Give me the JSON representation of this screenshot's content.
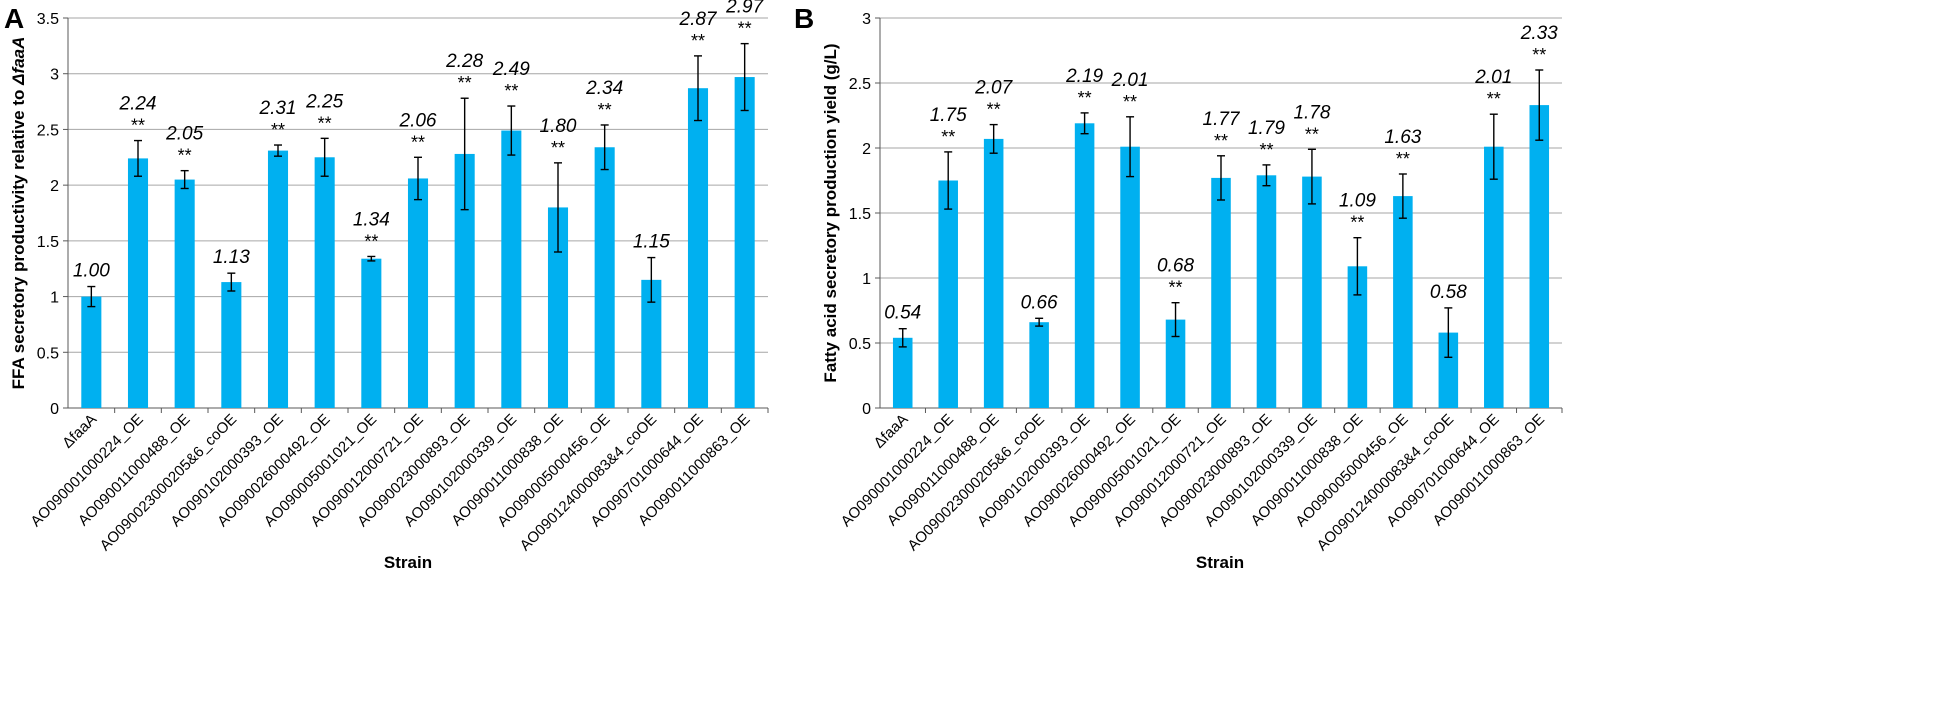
{
  "chart_data": [
    {
      "type": "bar",
      "panel": "A",
      "xlabel": "Strain",
      "ylabel": "FFA secretory productivity relative to ",
      "ylabel_italic": "ΔfaaA",
      "ylim": [
        0,
        3.5
      ],
      "ytick_step": 0.5,
      "yticks": [
        "0",
        "0.5",
        "1",
        "1.5",
        "2",
        "2.5",
        "3",
        "3.5"
      ],
      "grid": true,
      "color": "#00B0F0",
      "categories": [
        "ΔfaaA",
        "AO090001000224_OE",
        "AO090011000488_OE",
        "AO090023000205&6_coOE",
        "AO090102000393_OE",
        "AO090026000492_OE",
        "AO090005001021_OE",
        "AO090012000721_OE",
        "AO090023000893_OE",
        "AO090102000339_OE",
        "AO090011000838_OE",
        "AO090005000456_OE",
        "AO090124000083&4_coOE",
        "AO090701000644_OE",
        "AO090011000863_OE"
      ],
      "values": [
        1.0,
        2.24,
        2.05,
        1.13,
        2.31,
        2.25,
        1.34,
        2.06,
        2.28,
        2.49,
        1.8,
        2.34,
        1.15,
        2.87,
        2.97
      ],
      "errors": [
        0.09,
        0.16,
        0.08,
        0.08,
        0.05,
        0.17,
        0.02,
        0.19,
        0.5,
        0.22,
        0.4,
        0.2,
        0.2,
        0.29,
        0.3
      ],
      "value_labels": [
        "1.00",
        "2.24",
        "2.05",
        "1.13",
        "2.31",
        "2.25",
        "1.34",
        "2.06",
        "2.28",
        "2.49",
        "1.80",
        "2.34",
        "1.15",
        "2.87",
        "2.97"
      ],
      "significance": [
        "",
        "**",
        "**",
        "",
        "**",
        "**",
        "**",
        "**",
        "**",
        "**",
        "**",
        "**",
        "",
        "**",
        "**"
      ]
    },
    {
      "type": "bar",
      "panel": "B",
      "xlabel": "Strain",
      "ylabel": "Fatty acid secretory production yield (g/L)",
      "ylabel_italic": "",
      "ylim": [
        0,
        3
      ],
      "ytick_step": 0.5,
      "yticks": [
        "0",
        "0.5",
        "1",
        "1.5",
        "2",
        "2.5",
        "3"
      ],
      "grid": true,
      "color": "#00B0F0",
      "categories": [
        "ΔfaaA",
        "AO090001000224_OE",
        "AO090011000488_OE",
        "AO090023000205&6_coOE",
        "AO090102000393_OE",
        "AO090026000492_OE",
        "AO090005001021_OE",
        "AO090012000721_OE",
        "AO090023000893_OE",
        "AO090102000339_OE",
        "AO090011000838_OE",
        "AO090005000456_OE",
        "AO090124000083&4_coOE",
        "AO090701000644_OE",
        "AO090011000863_OE"
      ],
      "values": [
        0.54,
        1.75,
        2.07,
        0.66,
        2.19,
        2.01,
        0.68,
        1.77,
        1.79,
        1.78,
        1.09,
        1.63,
        0.58,
        2.01,
        2.33
      ],
      "errors": [
        0.07,
        0.22,
        0.11,
        0.03,
        0.08,
        0.23,
        0.13,
        0.17,
        0.08,
        0.21,
        0.22,
        0.17,
        0.19,
        0.25,
        0.27
      ],
      "value_labels": [
        "0.54",
        "1.75",
        "2.07",
        "0.66",
        "2.19",
        "2.01",
        "0.68",
        "1.77",
        "1.79",
        "1.78",
        "1.09",
        "1.63",
        "0.58",
        "2.01",
        "2.33"
      ],
      "significance": [
        "",
        "**",
        "**",
        "",
        "**",
        "**",
        "**",
        "**",
        "**",
        "**",
        "**",
        "**",
        "",
        "**",
        "**"
      ]
    }
  ]
}
